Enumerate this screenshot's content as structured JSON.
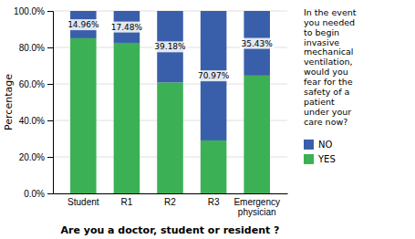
{
  "chart_data": {
    "type": "bar",
    "stacked": true,
    "title": "In the event\nyou needed\nto begin\ninvasive\nmechanical\nventilation,\nwould you\nfear for the\nsafety of a\npatient\nunder your\ncare now?",
    "xlabel": "Are you a doctor, student or resident ?",
    "ylabel": "Percentage",
    "categories": [
      "Student",
      "R1",
      "R2",
      "R3",
      "Emergency\nphysician"
    ],
    "series": [
      {
        "name": "YES",
        "color": "#3cb054",
        "values": [
          85.04,
          82.52,
          60.82,
          29.03,
          64.57
        ]
      },
      {
        "name": "NO",
        "color": "#3a5faa",
        "values": [
          14.96,
          17.48,
          39.18,
          70.97,
          35.43
        ],
        "value_labels": [
          "14.96%",
          "17.48%",
          "39.18%",
          "70.97%",
          "35.43%"
        ]
      }
    ],
    "data_labels": true,
    "ylim": [
      0,
      100
    ],
    "yticks": [
      {
        "value": 0,
        "label": "0.0%"
      },
      {
        "value": 20,
        "label": "20.0%"
      },
      {
        "value": 40,
        "label": "40.0%"
      },
      {
        "value": 60,
        "label": "60.0%"
      },
      {
        "value": 80,
        "label": "80.0%"
      },
      {
        "value": 100,
        "label": "100.0%"
      }
    ],
    "grid": true,
    "legend": "right"
  }
}
